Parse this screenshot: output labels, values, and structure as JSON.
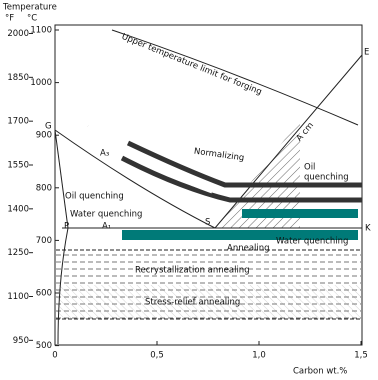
{
  "axes": {
    "y_title": "Temperature",
    "fahrenheit_unit": "°F",
    "celsius_unit": "°C",
    "x_title": "Carbon wt.%",
    "fahrenheit_ticks": [
      2000,
      1850,
      1700,
      1550,
      1400,
      1250,
      1100,
      950
    ],
    "celsius_ticks": [
      1100,
      1000,
      900,
      800,
      700,
      600,
      500
    ],
    "x_ticks": [
      {
        "value": 0,
        "label": "0"
      },
      {
        "value": 0.5,
        "label": "0,5"
      },
      {
        "value": 1.0,
        "label": "1,0"
      },
      {
        "value": 1.5,
        "label": "1,5"
      }
    ]
  },
  "labels": {
    "forging_limit": "Upper temperature limit for forging",
    "normalizing": "Normalizing",
    "oil_quenching_left": "Oil quenching",
    "oil_quenching_right": [
      "Oil",
      "quenching"
    ],
    "water_quenching_left": "Water quenching",
    "water_quenching_right": "Water quenching",
    "annealing": "Annealing",
    "recrystallization": "Recrystallization annealing",
    "stress_relief": "Stress-relief annealing",
    "a3": "A₃",
    "a1": "A₁",
    "acm": "A cm",
    "point_g": "G",
    "point_p": "P",
    "point_s": "S",
    "point_e": "E",
    "point_k": "K"
  }
}
